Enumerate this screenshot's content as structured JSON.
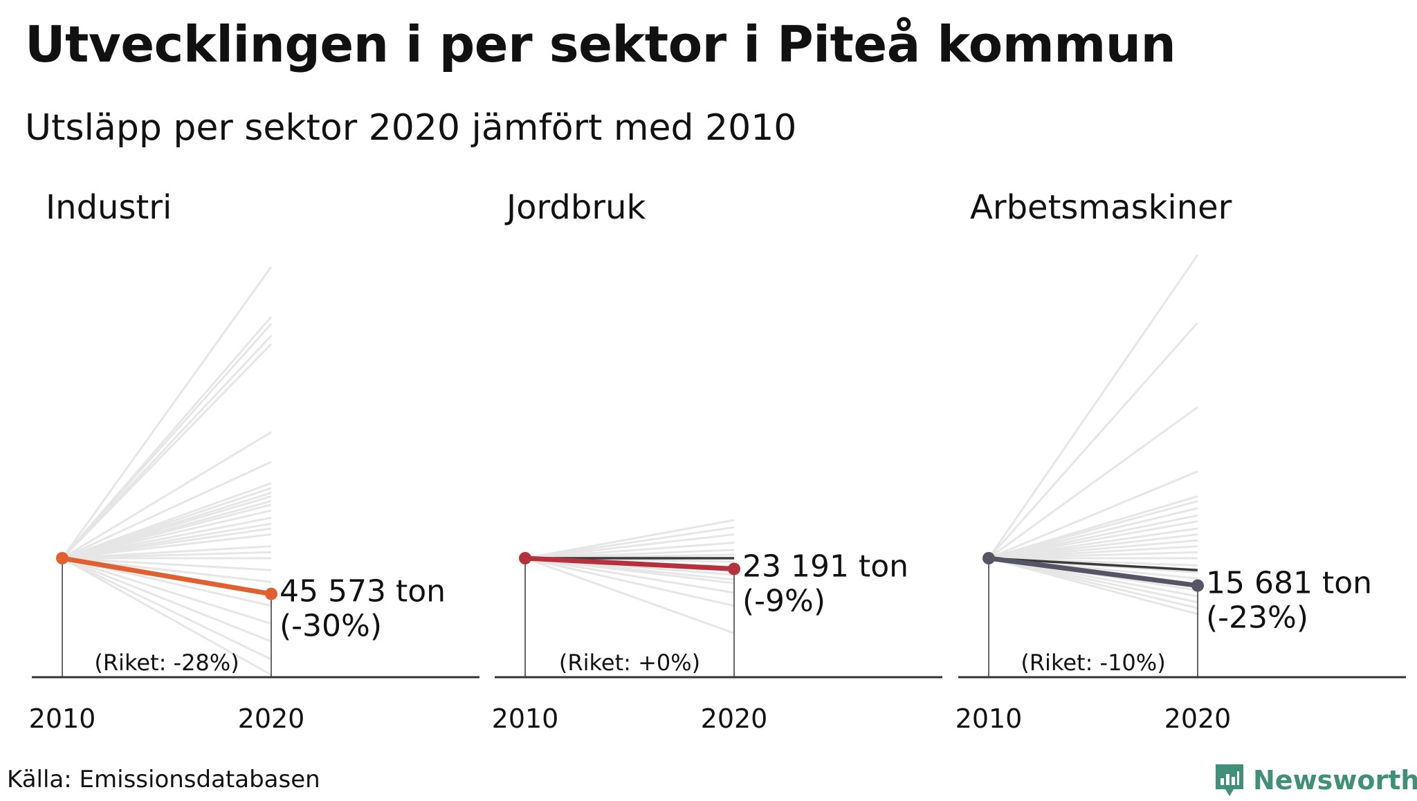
{
  "title": "Utvecklingen i per sektor i Piteå kommun",
  "subtitle": "Utsläpp per sektor 2020 jämfört med 2010",
  "source": "Källa: Emissionsdatabasen",
  "brand": {
    "name": "Newsworthy",
    "icon": "newsworthy-logo-icon",
    "color": "#3f8f79"
  },
  "chart_data": [
    {
      "type": "line",
      "title": "Industri",
      "x": [
        "2010",
        "2020"
      ],
      "highlight": {
        "value_2020": "45 573 ton",
        "change": "(-30%)",
        "index_2020": 0.7,
        "color": "#e06030"
      },
      "national": {
        "label": "(Riket: -28%)",
        "index_2020": null
      },
      "comparison_index_2020": [
        3.45,
        3.03,
        2.97,
        2.87,
        2.8,
        2.06,
        1.81,
        1.63,
        1.59,
        1.55,
        1.52,
        1.48,
        1.45,
        1.4,
        1.34,
        1.29,
        1.25,
        1.2,
        1.1,
        1.05,
        1.0,
        0.9,
        0.8,
        0.7,
        0.6,
        0.45,
        0.3,
        0.15,
        0.02
      ],
      "ylim": [
        0,
        3.55
      ]
    },
    {
      "type": "line",
      "title": "Jordbruk",
      "x": [
        "2010",
        "2020"
      ],
      "highlight": {
        "value_2020": "23 191 ton",
        "change": "(-9%)",
        "index_2020": 0.91,
        "color": "#b5313d"
      },
      "national": {
        "label": "(Riket: +0%)",
        "index_2020": 1.0
      },
      "comparison_index_2020": [
        1.32,
        1.26,
        1.2,
        1.13,
        1.07,
        1.03,
        0.97,
        0.93,
        0.89,
        0.86,
        0.82,
        0.79,
        0.71,
        0.6,
        0.37
      ],
      "ylim": [
        0,
        3.55
      ]
    },
    {
      "type": "line",
      "title": "Arbetsmaskiner",
      "x": [
        "2010",
        "2020"
      ],
      "highlight": {
        "value_2020": "15 681 ton",
        "change": "(-23%)",
        "index_2020": 0.77,
        "color": "#555566"
      },
      "national": {
        "label": "(Riket: -10%)",
        "index_2020": 0.9
      },
      "comparison_index_2020": [
        3.55,
        2.98,
        2.27,
        1.73,
        1.52,
        1.48,
        1.42,
        1.36,
        1.31,
        1.25,
        1.2,
        1.15,
        1.1,
        1.05,
        1.0,
        0.94,
        0.88,
        0.83,
        0.78,
        0.73,
        0.68,
        0.63,
        0.58,
        0.53
      ],
      "ylim": [
        0,
        3.55
      ]
    }
  ]
}
